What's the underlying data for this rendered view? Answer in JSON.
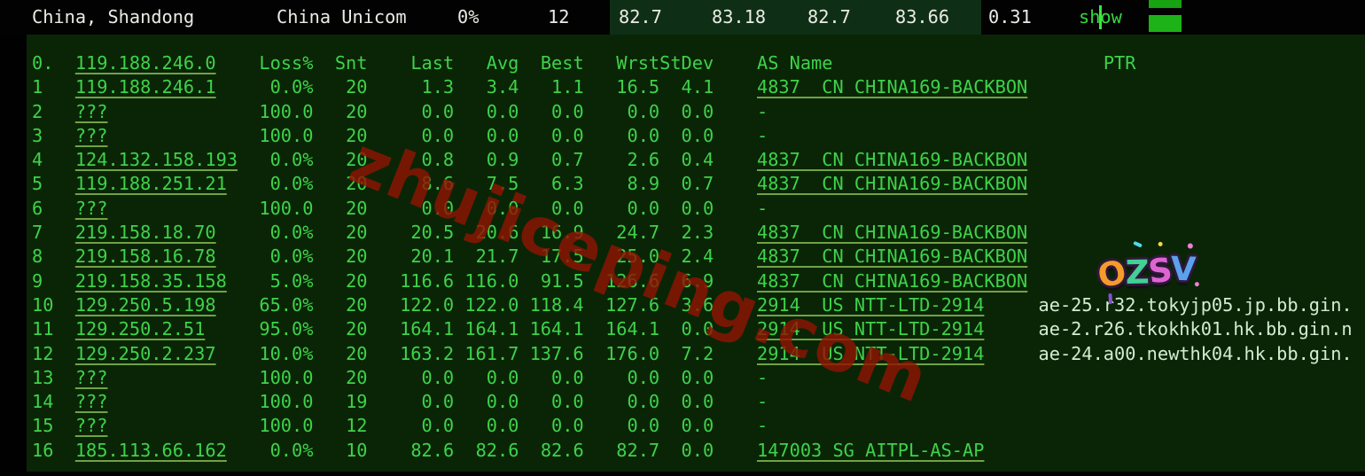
{
  "top_bar": {
    "location": "China, Shandong",
    "isp": "China Unicom",
    "loss": "0%",
    "snt": "12",
    "last": "82.7",
    "avg": "83.18",
    "best": "82.7",
    "wrst": "83.66",
    "stdev": "0.31",
    "show_label": "show"
  },
  "table": {
    "header": {
      "hop": "0.",
      "host": "119.188.246.0",
      "loss": "Loss%",
      "snt": "Snt",
      "last": "Last",
      "avg": "Avg",
      "best": "Best",
      "wrst": "Wrst",
      "stdev": "StDev",
      "as_name": "AS Name",
      "ptr": "PTR"
    },
    "rows": [
      {
        "hop": "1",
        "host": "119.188.246.1",
        "loss": "0.0%",
        "snt": "20",
        "last": "1.3",
        "avg": "3.4",
        "best": "1.1",
        "wrst": "16.5",
        "stdev": "4.1",
        "as_name": "4837  CN CHINA169-BACKBON",
        "ptr": ""
      },
      {
        "hop": "2",
        "host": "???",
        "loss": "100.0",
        "snt": "20",
        "last": "0.0",
        "avg": "0.0",
        "best": "0.0",
        "wrst": "0.0",
        "stdev": "0.0",
        "as_name": "-",
        "ptr": ""
      },
      {
        "hop": "3",
        "host": "???",
        "loss": "100.0",
        "snt": "20",
        "last": "0.0",
        "avg": "0.0",
        "best": "0.0",
        "wrst": "0.0",
        "stdev": "0.0",
        "as_name": "-",
        "ptr": ""
      },
      {
        "hop": "4",
        "host": "124.132.158.193",
        "loss": "0.0%",
        "snt": "20",
        "last": "0.8",
        "avg": "0.9",
        "best": "0.7",
        "wrst": "2.6",
        "stdev": "0.4",
        "as_name": "4837  CN CHINA169-BACKBON",
        "ptr": ""
      },
      {
        "hop": "5",
        "host": "119.188.251.21",
        "loss": "0.0%",
        "snt": "20",
        "last": "8.6",
        "avg": "7.5",
        "best": "6.3",
        "wrst": "8.9",
        "stdev": "0.7",
        "as_name": "4837  CN CHINA169-BACKBON",
        "ptr": ""
      },
      {
        "hop": "6",
        "host": "???",
        "loss": "100.0",
        "snt": "20",
        "last": "0.0",
        "avg": "0.0",
        "best": "0.0",
        "wrst": "0.0",
        "stdev": "0.0",
        "as_name": "-",
        "ptr": ""
      },
      {
        "hop": "7",
        "host": "219.158.18.70",
        "loss": "0.0%",
        "snt": "20",
        "last": "20.5",
        "avg": "20.6",
        "best": "16.9",
        "wrst": "24.7",
        "stdev": "2.3",
        "as_name": "4837  CN CHINA169-BACKBON",
        "ptr": ""
      },
      {
        "hop": "8",
        "host": "219.158.16.78",
        "loss": "0.0%",
        "snt": "20",
        "last": "20.1",
        "avg": "21.7",
        "best": "17.5",
        "wrst": "25.0",
        "stdev": "2.4",
        "as_name": "4837  CN CHINA169-BACKBON",
        "ptr": ""
      },
      {
        "hop": "9",
        "host": "219.158.35.158",
        "loss": "5.0%",
        "snt": "20",
        "last": "116.6",
        "avg": "116.0",
        "best": "91.5",
        "wrst": "126.6",
        "stdev": "6.9",
        "as_name": "4837  CN CHINA169-BACKBON",
        "ptr": ""
      },
      {
        "hop": "10",
        "host": "129.250.5.198",
        "loss": "65.0%",
        "snt": "20",
        "last": "122.0",
        "avg": "122.0",
        "best": "118.4",
        "wrst": "127.6",
        "stdev": "3.6",
        "as_name": "2914  US NTT-LTD-2914",
        "ptr": "ae-25.r32.tokyjp05.jp.bb.gin."
      },
      {
        "hop": "11",
        "host": "129.250.2.51",
        "loss": "95.0%",
        "snt": "20",
        "last": "164.1",
        "avg": "164.1",
        "best": "164.1",
        "wrst": "164.1",
        "stdev": "0.0",
        "as_name": "2914  US NTT-LTD-2914",
        "ptr": "ae-2.r26.tkokhk01.hk.bb.gin.n"
      },
      {
        "hop": "12",
        "host": "129.250.2.237",
        "loss": "10.0%",
        "snt": "20",
        "last": "163.2",
        "avg": "161.7",
        "best": "137.6",
        "wrst": "176.0",
        "stdev": "7.2",
        "as_name": "2914  US NTT-LTD-2914",
        "ptr": "ae-24.a00.newthk04.hk.bb.gin."
      },
      {
        "hop": "13",
        "host": "???",
        "loss": "100.0",
        "snt": "20",
        "last": "0.0",
        "avg": "0.0",
        "best": "0.0",
        "wrst": "0.0",
        "stdev": "0.0",
        "as_name": "-",
        "ptr": ""
      },
      {
        "hop": "14",
        "host": "???",
        "loss": "100.0",
        "snt": "19",
        "last": "0.0",
        "avg": "0.0",
        "best": "0.0",
        "wrst": "0.0",
        "stdev": "0.0",
        "as_name": "-",
        "ptr": ""
      },
      {
        "hop": "15",
        "host": "???",
        "loss": "100.0",
        "snt": "12",
        "last": "0.0",
        "avg": "0.0",
        "best": "0.0",
        "wrst": "0.0",
        "stdev": "0.0",
        "as_name": "-",
        "ptr": ""
      },
      {
        "hop": "16",
        "host": "185.113.66.162",
        "loss": "0.0%",
        "snt": "10",
        "last": "82.6",
        "avg": "82.6",
        "best": "82.6",
        "wrst": "82.7",
        "stdev": "0.0",
        "as_name": "147003 SG AITPL-AS-AP",
        "ptr": ""
      }
    ]
  },
  "watermark": {
    "text": "zhujiceping.com",
    "color": "#8f1503"
  },
  "sticker": {
    "text": "OZSV",
    "letter_colors": [
      "#f59b2c",
      "#43cf96",
      "#de64d2",
      "#5aa2ee"
    ]
  },
  "colors": {
    "background": "#0a2506",
    "top_bar_background": "#020202",
    "top_bar_highlight": "#0e2f16",
    "terminal_green": "#3ed24a",
    "ptr_text": "#d2ecd0",
    "bar_text": "#ebebe5",
    "link_green": "#35d93c",
    "scrollbar_green": "#1db217"
  }
}
